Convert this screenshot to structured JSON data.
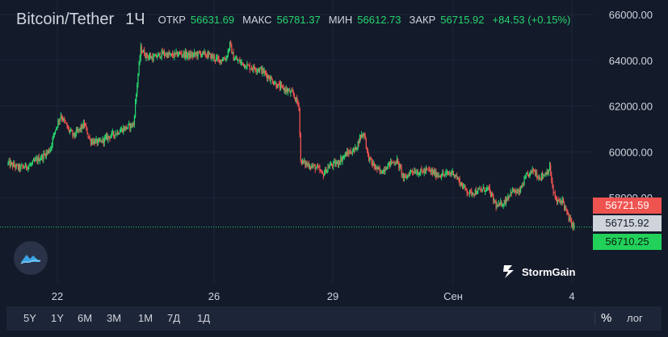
{
  "header": {
    "title": "Bitcoin/Tether",
    "interval": "1Ч",
    "open_label": "ОТКР",
    "open_value": "56631.69",
    "high_label": "МАКС",
    "high_value": "56781.37",
    "low_label": "МИН",
    "low_value": "56612.73",
    "close_label": "ЗАКР",
    "close_value": "56715.92",
    "change": "+84.53 (+0.15%)"
  },
  "price_axis": {
    "ticks": [
      "66000.00",
      "64000.00",
      "62000.00",
      "60000.00",
      "58000.00"
    ]
  },
  "time_axis": {
    "ticks": [
      "22",
      "26",
      "29",
      "Сен",
      "4"
    ]
  },
  "price_labels": {
    "ask": "56721.59",
    "last": "56715.92",
    "bid": "56710.25"
  },
  "brand": {
    "name": "StormGain"
  },
  "toolbar": {
    "timeframes": [
      "5Y",
      "1Y",
      "6M",
      "3M",
      "1M",
      "7Д",
      "1Д"
    ],
    "percent_label": "%",
    "log_label": "лог"
  },
  "colors": {
    "background": "#131a2a",
    "up": "#26d66e",
    "down": "#ef5350",
    "ask_label": "#ef5350",
    "last_label": "#cfd3da",
    "bid_label": "#22d15a"
  },
  "icons": {
    "logo": "cloud-wave-icon",
    "brand": "lightning-icon"
  },
  "chart_data": {
    "type": "candlestick",
    "y_range": [
      56000,
      66000
    ],
    "y_ticks": [
      66000,
      64000,
      62000,
      60000,
      58000
    ],
    "x_ticks": [
      "22",
      "26",
      "29",
      "Сен",
      "4"
    ],
    "candles_per_day": 24,
    "path": [
      [
        0,
        59500
      ],
      [
        12,
        59300
      ],
      [
        24,
        59400
      ],
      [
        30,
        59600
      ],
      [
        38,
        59800
      ],
      [
        46,
        60100
      ],
      [
        52,
        61000
      ],
      [
        58,
        61600
      ],
      [
        66,
        61000
      ],
      [
        72,
        60700
      ],
      [
        84,
        61200
      ],
      [
        90,
        60500
      ],
      [
        100,
        60400
      ],
      [
        112,
        60700
      ],
      [
        122,
        60900
      ],
      [
        132,
        61100
      ],
      [
        138,
        61200
      ],
      [
        142,
        63000
      ],
      [
        146,
        64500
      ],
      [
        152,
        64200
      ],
      [
        160,
        64100
      ],
      [
        170,
        64300
      ],
      [
        180,
        64200
      ],
      [
        190,
        64300
      ],
      [
        200,
        64200
      ],
      [
        212,
        64300
      ],
      [
        222,
        64200
      ],
      [
        232,
        64000
      ],
      [
        240,
        64100
      ],
      [
        244,
        64700
      ],
      [
        248,
        64100
      ],
      [
        256,
        63900
      ],
      [
        266,
        63700
      ],
      [
        278,
        63600
      ],
      [
        286,
        63300
      ],
      [
        296,
        62900
      ],
      [
        306,
        62700
      ],
      [
        314,
        62500
      ],
      [
        320,
        62000
      ],
      [
        322,
        59600
      ],
      [
        326,
        59500
      ],
      [
        332,
        59400
      ],
      [
        340,
        59300
      ],
      [
        346,
        59000
      ],
      [
        354,
        59400
      ],
      [
        362,
        59500
      ],
      [
        372,
        59900
      ],
      [
        382,
        60100
      ],
      [
        388,
        60700
      ],
      [
        392,
        60800
      ],
      [
        396,
        59800
      ],
      [
        402,
        59400
      ],
      [
        410,
        59100
      ],
      [
        420,
        59500
      ],
      [
        428,
        59600
      ],
      [
        436,
        58800
      ],
      [
        444,
        59200
      ],
      [
        452,
        59100
      ],
      [
        462,
        59200
      ],
      [
        472,
        59000
      ],
      [
        480,
        59000
      ],
      [
        490,
        59100
      ],
      [
        500,
        58500
      ],
      [
        508,
        58200
      ],
      [
        518,
        58300
      ],
      [
        528,
        58400
      ],
      [
        534,
        57900
      ],
      [
        538,
        57600
      ],
      [
        546,
        57800
      ],
      [
        554,
        58300
      ],
      [
        562,
        58200
      ],
      [
        570,
        58900
      ],
      [
        578,
        59200
      ],
      [
        584,
        58900
      ],
      [
        590,
        59000
      ],
      [
        596,
        59300
      ],
      [
        600,
        58200
      ],
      [
        604,
        57800
      ],
      [
        610,
        57900
      ],
      [
        614,
        57400
      ],
      [
        618,
        57000
      ],
      [
        623,
        56700
      ]
    ],
    "last_close": 56715.92
  }
}
